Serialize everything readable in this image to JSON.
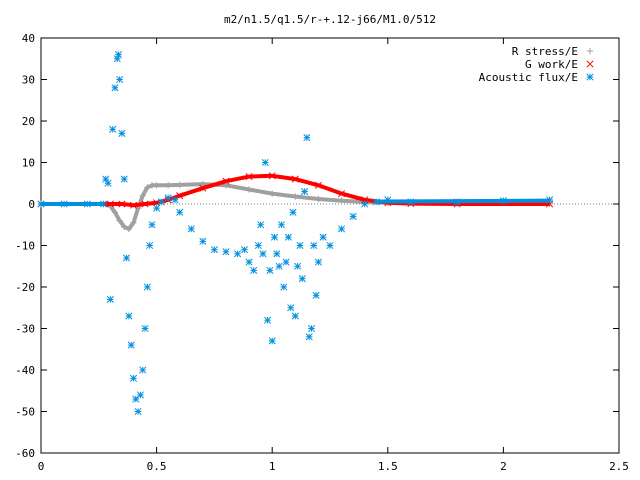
{
  "chart_data": {
    "type": "scatter",
    "title": "m2/n1.5/q1.5/r-+.12-j66/M1.0/512",
    "xlabel": "",
    "ylabel": "",
    "xlim": [
      0,
      2.5
    ],
    "ylim": [
      -60,
      40
    ],
    "xticks": [
      "0",
      "0.5",
      "1",
      "1.5",
      "2",
      "2.5"
    ],
    "yticks": [
      "40",
      "30",
      "20",
      "10",
      "0",
      "-10",
      "-20",
      "-30",
      "-40",
      "-50",
      "-60"
    ],
    "grid": false,
    "legend_position": "top-right",
    "series": [
      {
        "name": "R stress/E",
        "marker": "plus",
        "color": "#a0a0a0",
        "x": [
          0.0,
          0.28,
          0.3,
          0.32,
          0.34,
          0.36,
          0.38,
          0.4,
          0.42,
          0.44,
          0.46,
          0.48,
          0.5,
          0.55,
          0.6,
          0.7,
          0.8,
          0.9,
          1.0,
          1.1,
          1.2,
          1.3,
          1.4,
          1.5,
          1.8,
          2.2
        ],
        "y": [
          0.0,
          0.0,
          -0.5,
          -2.0,
          -4.0,
          -5.5,
          -6.0,
          -4.5,
          -1.0,
          2.0,
          4.0,
          4.5,
          4.5,
          4.5,
          4.6,
          4.8,
          4.5,
          3.5,
          2.5,
          1.8,
          1.2,
          0.8,
          0.5,
          0.3,
          0.1,
          0.0
        ]
      },
      {
        "name": "G work/E",
        "marker": "cross",
        "color": "#ff0000",
        "x": [
          0.0,
          0.3,
          0.35,
          0.4,
          0.45,
          0.5,
          0.55,
          0.6,
          0.7,
          0.8,
          0.9,
          1.0,
          1.1,
          1.2,
          1.3,
          1.4,
          1.5,
          1.6,
          1.8,
          2.2
        ],
        "y": [
          0.0,
          0.0,
          0.0,
          -0.3,
          0.0,
          0.3,
          1.0,
          2.0,
          3.8,
          5.5,
          6.6,
          6.8,
          6.0,
          4.5,
          2.5,
          1.0,
          0.3,
          0.1,
          0.0,
          0.0
        ]
      },
      {
        "name": "Acoustic flux/E",
        "marker": "star",
        "color": "#0090e0",
        "x": [
          0.0,
          0.1,
          0.2,
          0.27,
          0.28,
          0.29,
          0.3,
          0.31,
          0.32,
          0.33,
          0.335,
          0.34,
          0.35,
          0.36,
          0.37,
          0.38,
          0.39,
          0.4,
          0.41,
          0.42,
          0.43,
          0.44,
          0.45,
          0.46,
          0.47,
          0.48,
          0.5,
          0.52,
          0.55,
          0.58,
          0.6,
          0.65,
          0.7,
          0.75,
          0.8,
          0.85,
          0.88,
          0.9,
          0.92,
          0.94,
          0.95,
          0.96,
          0.97,
          0.98,
          0.99,
          1.0,
          1.01,
          1.02,
          1.03,
          1.04,
          1.05,
          1.06,
          1.07,
          1.08,
          1.09,
          1.1,
          1.11,
          1.12,
          1.13,
          1.14,
          1.15,
          1.16,
          1.17,
          1.18,
          1.19,
          1.2,
          1.22,
          1.25,
          1.3,
          1.35,
          1.4,
          1.45,
          1.5,
          1.6,
          1.8,
          2.0,
          2.2
        ],
        "y": [
          0.0,
          0.0,
          0.0,
          0.0,
          6.0,
          5.0,
          -23.0,
          18.0,
          28.0,
          35.0,
          36.0,
          30.0,
          17.0,
          6.0,
          -13.0,
          -27.0,
          -34.0,
          -42.0,
          -47.0,
          -50.0,
          -46.0,
          -40.0,
          -30.0,
          -20.0,
          -10.0,
          -5.0,
          -1.0,
          0.5,
          1.5,
          1.0,
          -2.0,
          -6.0,
          -9.0,
          -11.0,
          -11.5,
          -12.0,
          -11.0,
          -14.0,
          -16.0,
          -10.0,
          -5.0,
          -12.0,
          10.0,
          -28.0,
          -16.0,
          -33.0,
          -8.0,
          -12.0,
          -15.0,
          -5.0,
          -20.0,
          -14.0,
          -8.0,
          -25.0,
          -2.0,
          -27.0,
          -15.0,
          -10.0,
          -18.0,
          3.0,
          16.0,
          -32.0,
          -30.0,
          -10.0,
          -22.0,
          -14.0,
          -8.0,
          -10.0,
          -6.0,
          -3.0,
          0.0,
          0.5,
          1.0,
          0.5,
          0.5,
          0.8,
          1.0
        ]
      }
    ]
  }
}
